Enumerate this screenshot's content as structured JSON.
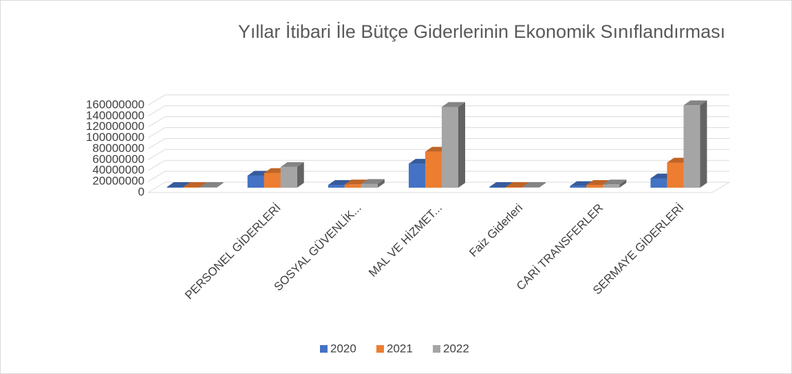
{
  "chart_data": {
    "type": "bar3d",
    "title": "Yıllar İtibari İle Bütçe Giderlerinin Ekonomik Sınıflandırması",
    "categories": [
      null,
      "PERSONEL GİDERLERİ",
      "SOSYAL GÜVENLİK...",
      "MAL VE HİZMET...",
      "Faiz Giderleri",
      "CARİ TRANSFERLER",
      "SERMAYE GİDERLERİ"
    ],
    "series": [
      {
        "name": "2020",
        "color": "#4472c4",
        "values": [
          500000,
          22000000,
          5000000,
          44000000,
          1000000,
          3000000,
          17000000
        ]
      },
      {
        "name": "2021",
        "color": "#ed7d31",
        "values": [
          500000,
          27000000,
          6000000,
          66000000,
          1000000,
          5000000,
          46000000
        ]
      },
      {
        "name": "2022",
        "color": "#a5a5a5",
        "values": [
          500000,
          38000000,
          7000000,
          148000000,
          1000000,
          6000000,
          151000000
        ]
      }
    ],
    "ylim": [
      0,
      160000000
    ],
    "yticks": [
      0,
      20000000,
      40000000,
      60000000,
      80000000,
      100000000,
      120000000,
      140000000,
      160000000
    ],
    "grid": true,
    "legend": "bottom"
  }
}
